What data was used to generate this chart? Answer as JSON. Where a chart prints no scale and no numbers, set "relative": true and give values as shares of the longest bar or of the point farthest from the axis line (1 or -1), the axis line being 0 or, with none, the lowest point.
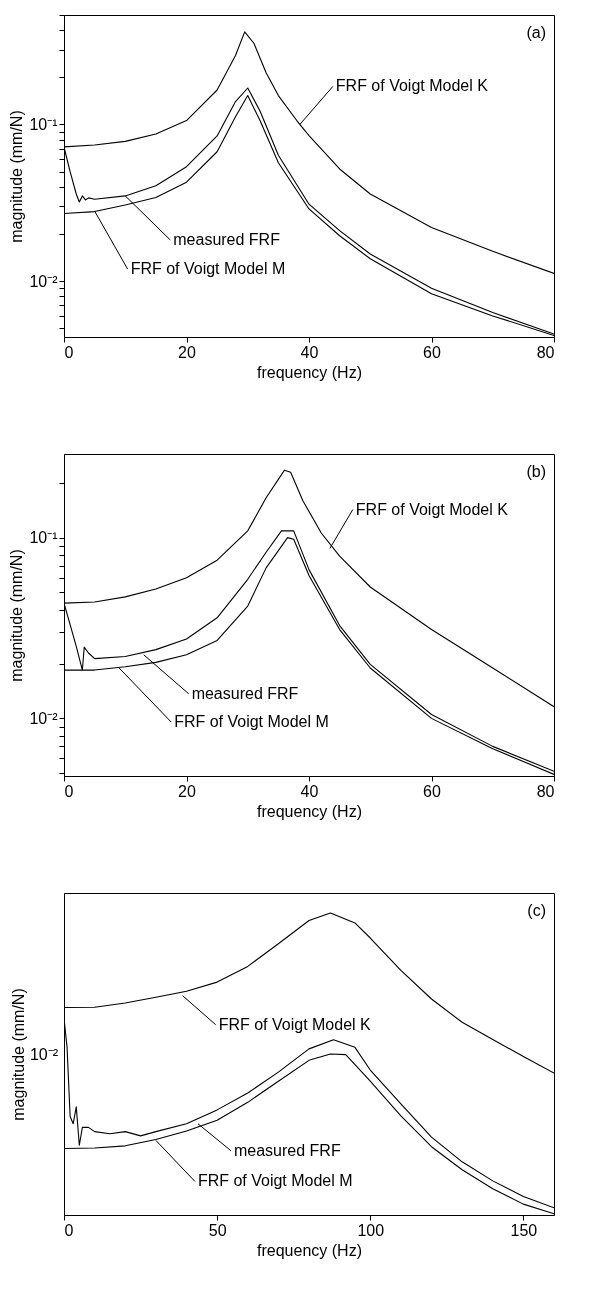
{
  "chart_data": [
    {
      "type": "line",
      "xlabel": "frequency (Hz)",
      "ylabel": "magnitude (mm/N)",
      "log": "y",
      "xlim": [
        0,
        80
      ],
      "xticks": [
        0,
        20,
        40,
        60,
        80
      ],
      "ylim": [
        0.0044,
        0.5
      ],
      "yticks": [
        {
          "value": 0.005,
          "label": null
        },
        {
          "value": 0.006,
          "label": null
        },
        {
          "value": 0.007,
          "label": null
        },
        {
          "value": 0.008,
          "label": null
        },
        {
          "value": 0.009,
          "label": null
        },
        {
          "value": 0.01,
          "label": "10⁻²"
        },
        {
          "value": 0.02,
          "label": null
        },
        {
          "value": 0.03,
          "label": null
        },
        {
          "value": 0.04,
          "label": null
        },
        {
          "value": 0.05,
          "label": null
        },
        {
          "value": 0.06,
          "label": null
        },
        {
          "value": 0.07,
          "label": null
        },
        {
          "value": 0.08,
          "label": null
        },
        {
          "value": 0.09,
          "label": null
        },
        {
          "value": 0.1,
          "label": "10⁻¹"
        },
        {
          "value": 0.2,
          "label": null
        },
        {
          "value": 0.3,
          "label": null
        },
        {
          "value": 0.4,
          "label": null
        },
        {
          "value": 0.5,
          "label": null
        }
      ],
      "series": [
        {
          "color": "#000000",
          "x": [
            0,
            5,
            10,
            15,
            20,
            25,
            28,
            29.5,
            31,
            33,
            35,
            38,
            40,
            45,
            50,
            60,
            70,
            80
          ],
          "values": [
            0.072,
            0.074,
            0.078,
            0.087,
            0.106,
            0.166,
            0.276,
            0.39,
            0.33,
            0.214,
            0.153,
            0.106,
            0.085,
            0.052,
            0.036,
            0.022,
            0.0155,
            0.0112
          ]
        },
        {
          "color": "#000000",
          "x": [
            0,
            1,
            2,
            2.5,
            3,
            3.5,
            4,
            5,
            10,
            15,
            20,
            25,
            28,
            30,
            32,
            35,
            40,
            45,
            50,
            60,
            70,
            80
          ],
          "values": [
            0.072,
            0.05,
            0.036,
            0.032,
            0.035,
            0.033,
            0.034,
            0.0333,
            0.035,
            0.0406,
            0.0538,
            0.0845,
            0.14,
            0.171,
            0.122,
            0.0637,
            0.031,
            0.021,
            0.0149,
            0.009,
            0.0063,
            0.0046
          ]
        },
        {
          "color": "#000000",
          "x": [
            0,
            5,
            10,
            15,
            20,
            25,
            28,
            30,
            32,
            35,
            40,
            45,
            50,
            60,
            70,
            80
          ],
          "values": [
            0.027,
            0.0278,
            0.0306,
            0.0342,
            0.0428,
            0.067,
            0.112,
            0.153,
            0.106,
            0.057,
            0.0289,
            0.0195,
            0.0139,
            0.0083,
            0.006,
            0.0045
          ]
        }
      ],
      "annotations": [
        "(a)",
        {
          "text": "FRF of Voigt Model K",
          "x": 38.5,
          "y": 0.1
        },
        {
          "text": "measured FRF",
          "x": 10,
          "y": 0.035
        },
        {
          "text": "FRF of Voigt Model M",
          "x": 5,
          "y": 0.028
        }
      ]
    },
    {
      "type": "line",
      "xlabel": "frequency (Hz)",
      "ylabel": "magnitude (mm/N)",
      "log": "y",
      "xlim": [
        0,
        80
      ],
      "xticks": [
        0,
        20,
        40,
        60,
        80
      ],
      "ylim": [
        0.0048,
        0.29
      ],
      "yticks": [
        {
          "value": 0.005,
          "label": null
        },
        {
          "value": 0.006,
          "label": null
        },
        {
          "value": 0.007,
          "label": null
        },
        {
          "value": 0.008,
          "label": null
        },
        {
          "value": 0.009,
          "label": null
        },
        {
          "value": 0.01,
          "label": "10⁻²"
        },
        {
          "value": 0.02,
          "label": null
        },
        {
          "value": 0.03,
          "label": null
        },
        {
          "value": 0.04,
          "label": null
        },
        {
          "value": 0.05,
          "label": null
        },
        {
          "value": 0.06,
          "label": null
        },
        {
          "value": 0.07,
          "label": null
        },
        {
          "value": 0.08,
          "label": null
        },
        {
          "value": 0.09,
          "label": null
        },
        {
          "value": 0.1,
          "label": "10⁻¹"
        },
        {
          "value": 0.2,
          "label": null
        }
      ],
      "series": [
        {
          "color": "#000000",
          "x": [
            0,
            5,
            10,
            15,
            20,
            25,
            30,
            33,
            36,
            37,
            39,
            42,
            45,
            50,
            60,
            70,
            80
          ],
          "values": [
            0.0434,
            0.044,
            0.047,
            0.052,
            0.06,
            0.075,
            0.109,
            0.166,
            0.236,
            0.23,
            0.16,
            0.106,
            0.079,
            0.0533,
            0.031,
            0.019,
            0.0116
          ]
        },
        {
          "color": "#000000",
          "x": [
            0,
            1,
            2,
            3,
            3.3,
            4,
            5,
            10,
            15,
            20,
            25,
            30,
            33,
            35.5,
            37.5,
            40,
            45,
            50,
            60,
            70,
            80
          ],
          "values": [
            0.0434,
            0.033,
            0.025,
            0.0185,
            0.0248,
            0.023,
            0.0214,
            0.022,
            0.024,
            0.0275,
            0.036,
            0.0588,
            0.083,
            0.109,
            0.109,
            0.0665,
            0.0326,
            0.0199,
            0.0105,
            0.007,
            0.0051
          ]
        },
        {
          "color": "#000000",
          "x": [
            0,
            5,
            10,
            15,
            20,
            25,
            30,
            33,
            36.5,
            37.5,
            40,
            45,
            50,
            60,
            70,
            80
          ],
          "values": [
            0.0185,
            0.0185,
            0.0193,
            0.0204,
            0.0225,
            0.027,
            0.0418,
            0.068,
            0.1,
            0.098,
            0.0617,
            0.031,
            0.019,
            0.01,
            0.0068,
            0.0049
          ]
        }
      ],
      "annotations": [
        "(b)",
        {
          "text": "FRF of Voigt Model K",
          "x": 43.4,
          "y": 0.087
        },
        {
          "text": "measured FRF",
          "x": 13,
          "y": 0.0225
        },
        {
          "text": "FRF of Voigt Model M",
          "x": 9,
          "y": 0.019
        }
      ]
    },
    {
      "type": "line",
      "xlabel": "frequency (Hz)",
      "ylabel": "magnitude (mm/N)",
      "relative": true,
      "xlim": [
        0,
        160
      ],
      "xticks": [
        0,
        50,
        100,
        150
      ],
      "series": [
        {
          "color": "#000000",
          "x": [
            0,
            10,
            20,
            30,
            40,
            50,
            60,
            70,
            80,
            87,
            95,
            100,
            110,
            120,
            130,
            140,
            150,
            160
          ],
          "values": [
            0.687,
            0.688,
            0.702,
            0.721,
            0.741,
            0.771,
            0.823,
            0.898,
            0.975,
            1,
            0.967,
            0.917,
            0.81,
            0.715,
            0.638,
            0.581,
            0.525,
            0.47
          ]
        },
        {
          "color": "#000000",
          "x": [
            0,
            1,
            2,
            3,
            4,
            5,
            6,
            8,
            10,
            15,
            20,
            25,
            30,
            40,
            50,
            60,
            70,
            80,
            88,
            95,
            100,
            110,
            120,
            130,
            140,
            150,
            160
          ],
          "values": [
            0.651,
            0.555,
            0.326,
            0.302,
            0.358,
            0.231,
            0.29,
            0.29,
            0.276,
            0.269,
            0.276,
            0.262,
            0.276,
            0.302,
            0.348,
            0.404,
            0.473,
            0.55,
            0.58,
            0.555,
            0.48,
            0.368,
            0.258,
            0.176,
            0.113,
            0.061,
            0.024
          ]
        },
        {
          "color": "#000000",
          "x": [
            0,
            10,
            20,
            30,
            40,
            50,
            60,
            70,
            80,
            87,
            92,
            100,
            110,
            120,
            130,
            140,
            150,
            160
          ],
          "values": [
            0.22,
            0.222,
            0.229,
            0.25,
            0.278,
            0.314,
            0.373,
            0.443,
            0.512,
            0.533,
            0.531,
            0.443,
            0.328,
            0.226,
            0.15,
            0.087,
            0.036,
            0.004
          ]
        }
      ],
      "annotations": [
        "(c)",
        {
          "text": "FRF of Voigt Model K",
          "x": 38.75,
          "y": 0.726
        },
        {
          "text": "measured FRF",
          "x": 43.75,
          "y": 0.302
        },
        {
          "text": "FRF of Voigt Model M",
          "x": 30,
          "y": 0.247
        },
        {
          "text": "10⁻²",
          "x": 0,
          "y": 0.531
        }
      ]
    }
  ]
}
